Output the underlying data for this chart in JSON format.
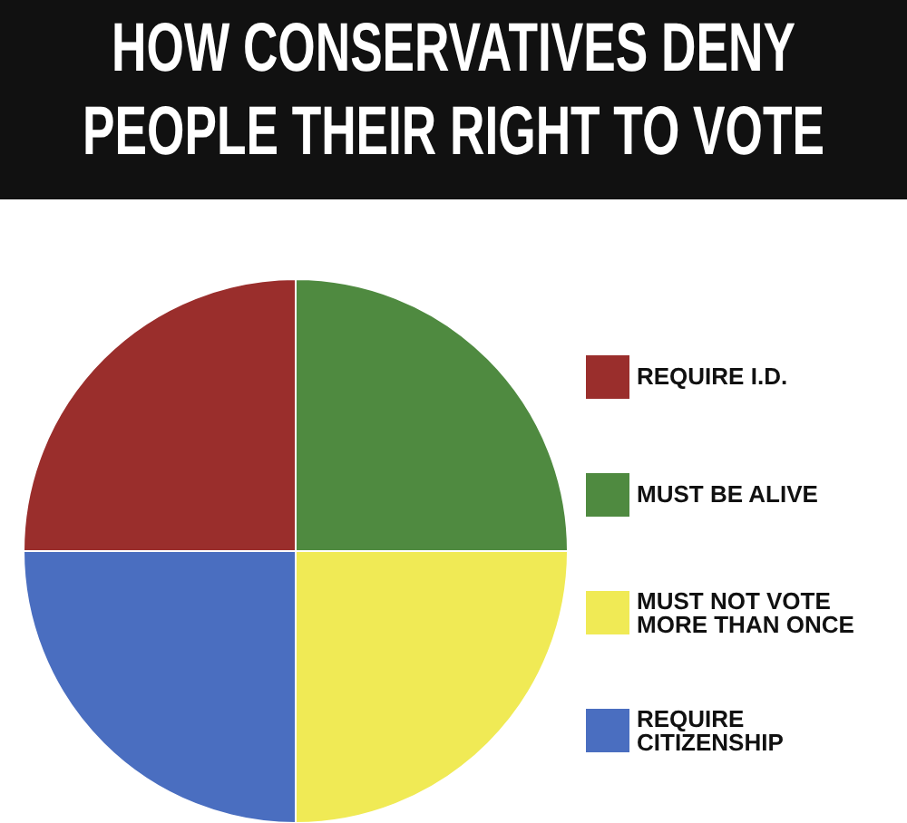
{
  "chart_data": {
    "type": "pie",
    "title": "HOW CONSERVATIVES DENY\nPEOPLE THEIR RIGHT TO VOTE",
    "categories": [
      "REQUIRE I.D.",
      "MUST BE ALIVE",
      "MUST NOT VOTE MORE THAN ONCE",
      "REQUIRE CITIZENSHIP"
    ],
    "values": [
      25,
      25,
      25,
      25
    ],
    "colors": [
      "#9a2e2c",
      "#4f8a40",
      "#f0ea55",
      "#4a6ec0"
    ],
    "legend": "right"
  }
}
